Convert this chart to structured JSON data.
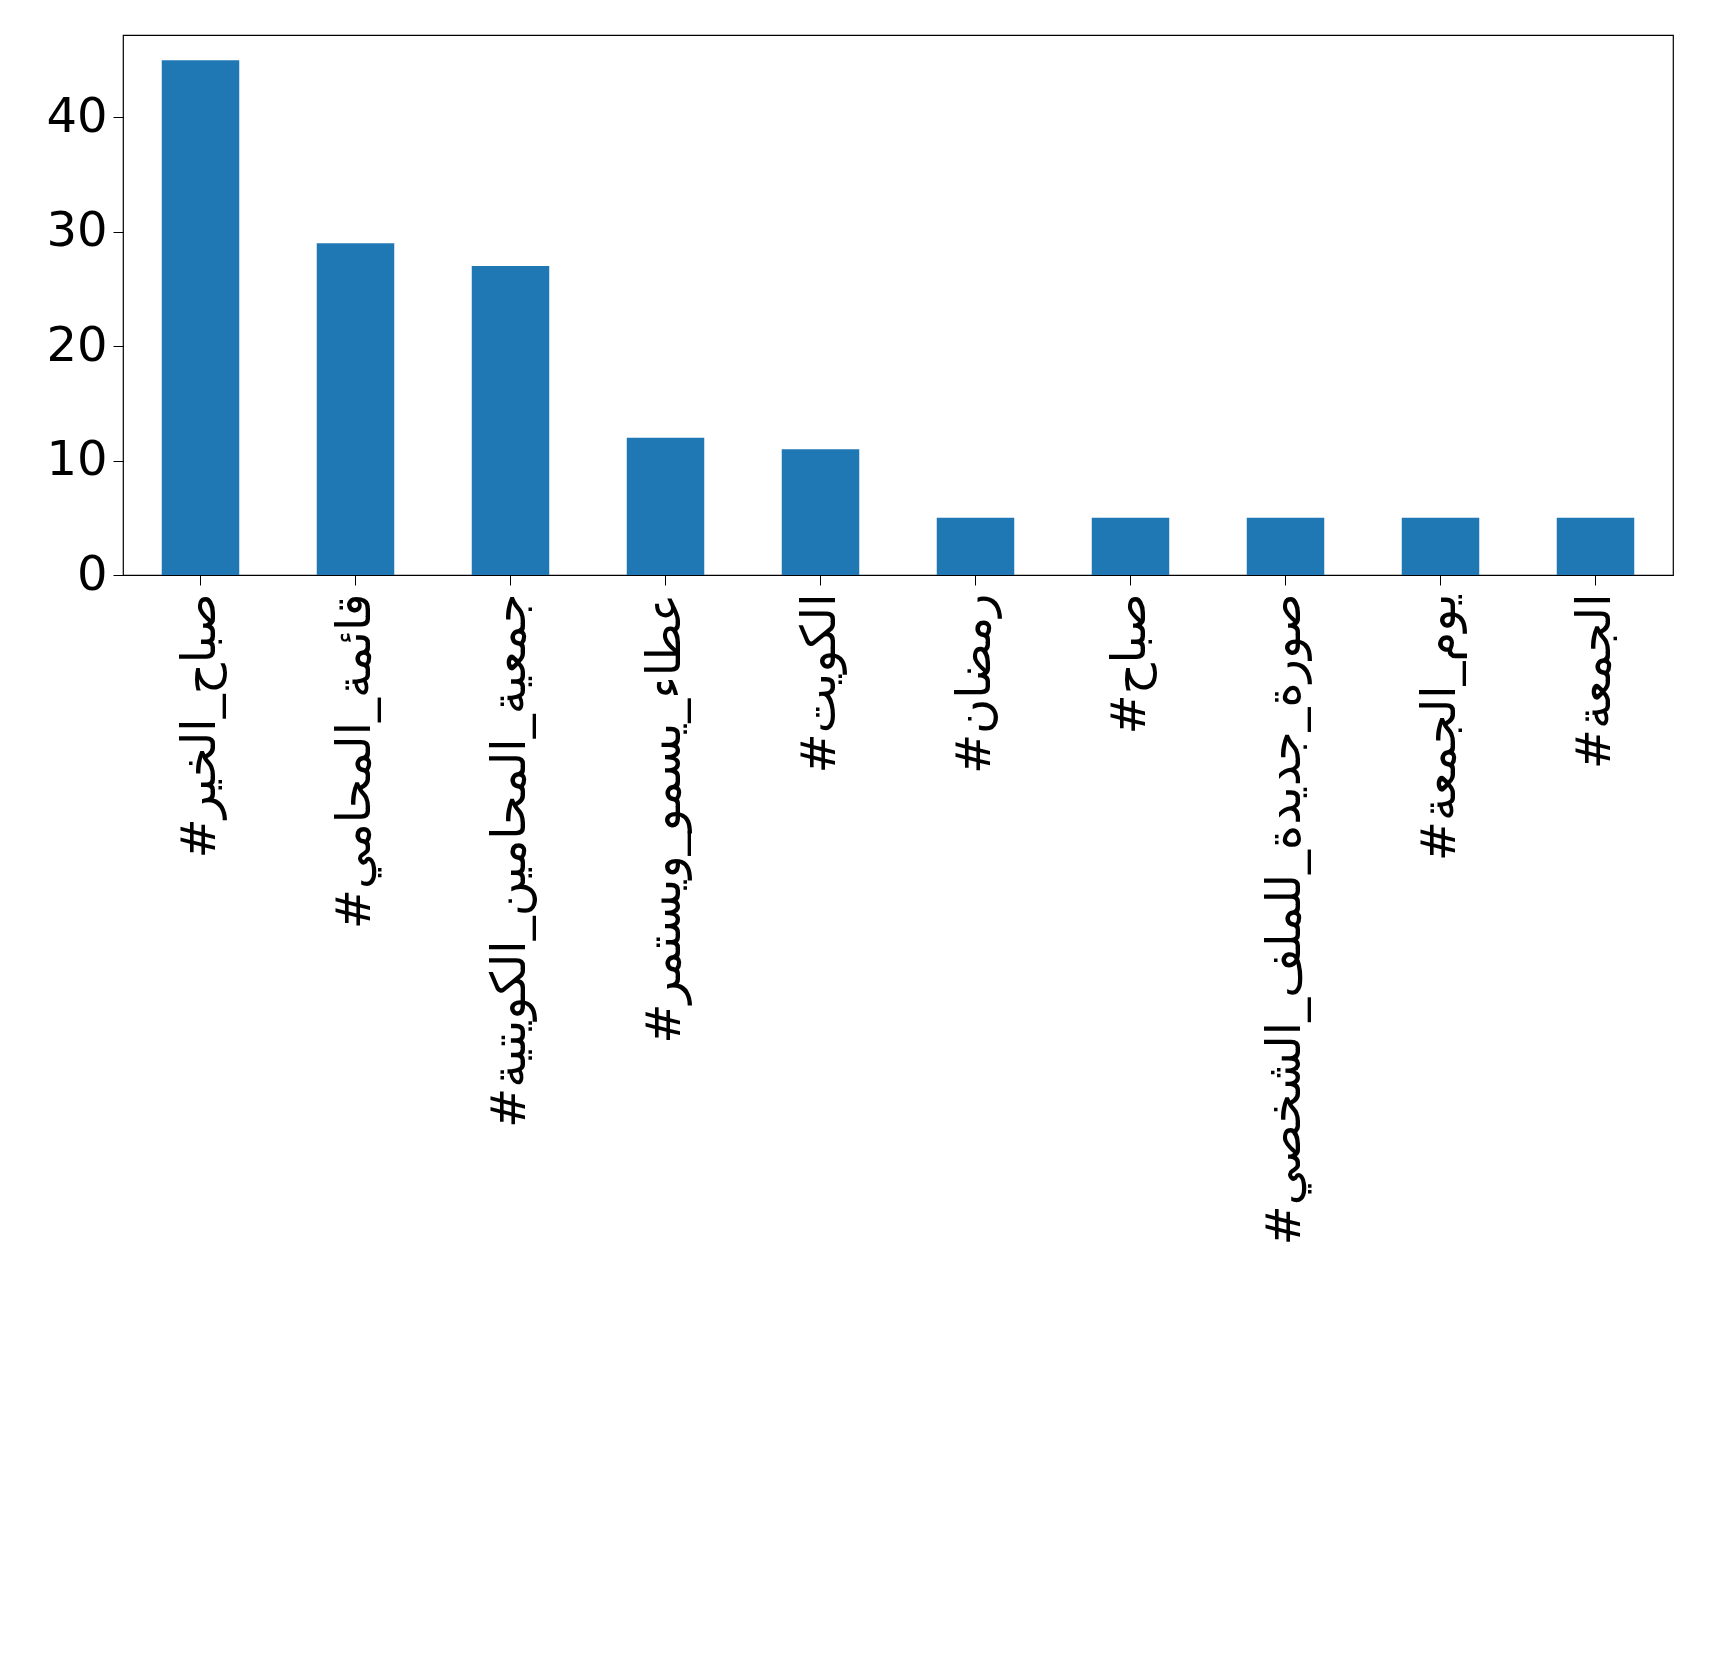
{
  "chart_data": {
    "type": "bar",
    "categories": [
      "#صباح_الخير",
      "#قائمة_المحامي",
      "#جمعية_المحامين_الكويتية",
      "#عطاء_يسمو_ويستمر",
      "#الكويت",
      "#رمضان",
      "#صباح",
      "#صورة_جديدة_للملف_الشخصي",
      "#يوم_الجمعة",
      "#الجمعة"
    ],
    "values": [
      45,
      29,
      27,
      12,
      11,
      5,
      5,
      5,
      5,
      5
    ],
    "color": "#1f77b4",
    "ylim": [
      0,
      47.2
    ],
    "yticks": [
      0,
      10,
      20,
      30,
      40
    ],
    "grid": false
  }
}
